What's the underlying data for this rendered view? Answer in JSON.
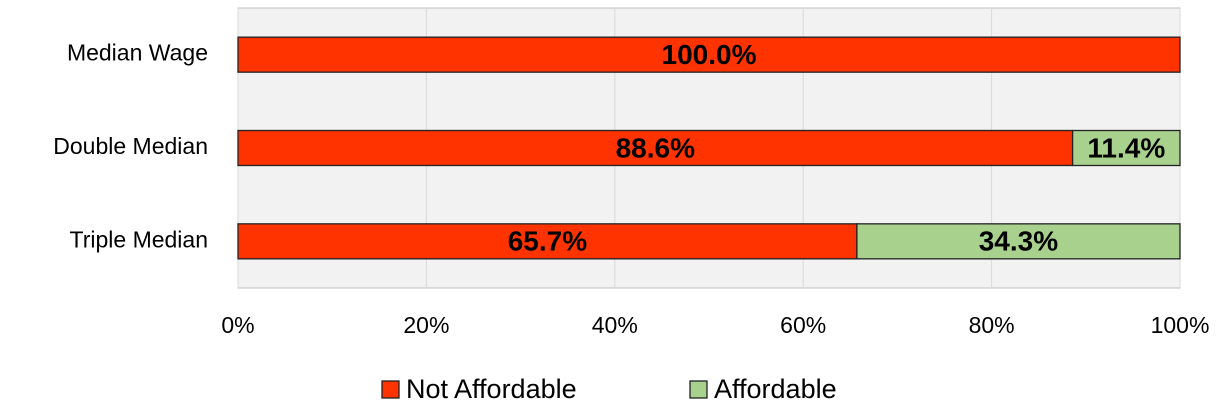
{
  "chart_data": {
    "type": "bar",
    "orientation": "horizontal",
    "stacked": true,
    "categories": [
      "Median Wage",
      "Double Median",
      "Triple Median"
    ],
    "series": [
      {
        "name": "Not Affordable",
        "color": "#ff3300",
        "values": [
          100,
          88.6,
          65.7
        ],
        "value_labels": [
          "100.0%",
          "88.6%",
          "65.7%"
        ]
      },
      {
        "name": "Affordable",
        "color": "#a9d18e",
        "values": [
          0,
          11.4,
          34.3
        ],
        "value_labels": [
          null,
          "11.4%",
          "34.3%"
        ]
      }
    ],
    "xlim": [
      0,
      100
    ],
    "xticks": [
      {
        "value": 0,
        "label": "0%"
      },
      {
        "value": 20,
        "label": "20%"
      },
      {
        "value": 40,
        "label": "40%"
      },
      {
        "value": 60,
        "label": "60%"
      },
      {
        "value": 80,
        "label": "80%"
      },
      {
        "value": 100,
        "label": "100%"
      }
    ],
    "grid": true,
    "legend": "bottom"
  }
}
